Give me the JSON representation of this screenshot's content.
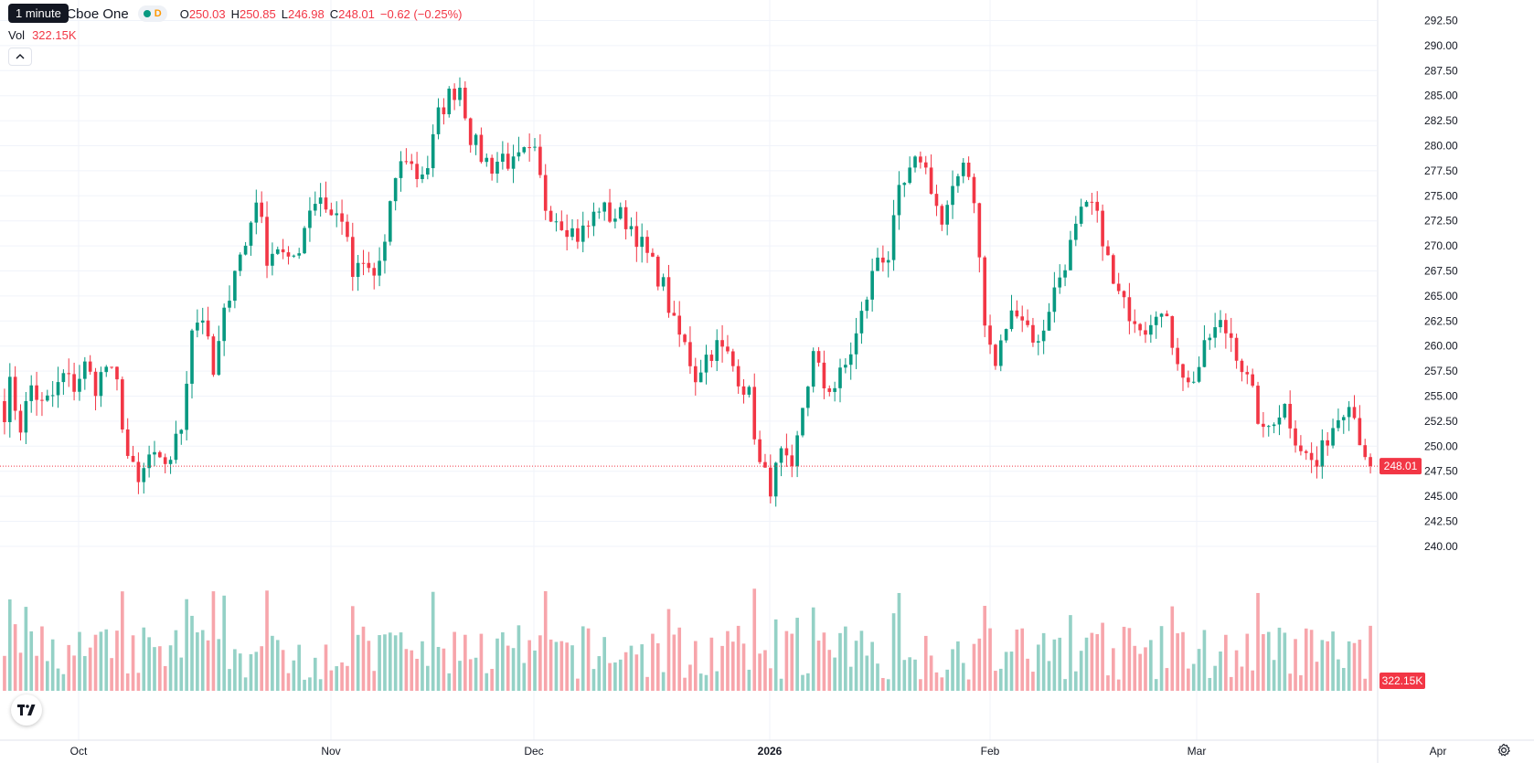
{
  "legend": {
    "title": "Inc · 4h · Cboe One",
    "market_letter": "D",
    "open_label": "O",
    "open": "250.03",
    "high_label": "H",
    "high": "250.85",
    "low_label": "L",
    "low": "246.98",
    "close_label": "C",
    "close": "248.01",
    "change": "−0.62 (−0.25%)",
    "vol_label": "Vol",
    "vol": "322.15K"
  },
  "tooltip": "1 minute",
  "logo_text": "TV",
  "colors": {
    "up": "#089981",
    "down": "#f23645",
    "up_volume": "#94d1c6",
    "down_volume": "#f7a5ab",
    "grid": "#f0f3fa"
  },
  "chart_data": {
    "type": "candlestick",
    "timeframe": "4h",
    "y_axis_ticks": [
      "292.50",
      "290.00",
      "287.50",
      "285.00",
      "282.50",
      "280.00",
      "277.50",
      "275.00",
      "272.50",
      "270.00",
      "267.50",
      "265.00",
      "262.50",
      "260.00",
      "257.50",
      "255.00",
      "252.50",
      "250.00",
      "247.50",
      "245.00",
      "242.50",
      "240.00"
    ],
    "ylim": [
      240.0,
      293.5
    ],
    "x_axis_labels": [
      "Oct",
      "Nov",
      "Dec",
      "2026",
      "Feb",
      "Mar",
      "Apr"
    ],
    "last_price": "248.01",
    "last_volume": "322.15K",
    "price_path": [
      {
        "d": "Sep 25",
        "v": 251
      },
      {
        "d": "Sep 26",
        "v": 256
      },
      {
        "d": "Sep 29",
        "v": 252
      },
      {
        "d": "Sep 30",
        "v": 256
      },
      {
        "d": "Oct 2",
        "v": 254
      },
      {
        "d": "Oct 3",
        "v": 255
      },
      {
        "d": "Oct 6",
        "v": 257
      },
      {
        "d": "Oct 7",
        "v": 256
      },
      {
        "d": "Oct 8",
        "v": 258
      },
      {
        "d": "Oct 9",
        "v": 256
      },
      {
        "d": "Oct 10",
        "v": 258
      },
      {
        "d": "Oct 13",
        "v": 256
      },
      {
        "d": "Oct 14",
        "v": 249
      },
      {
        "d": "Oct 15",
        "v": 246
      },
      {
        "d": "Oct 16",
        "v": 249
      },
      {
        "d": "Oct 17",
        "v": 248
      },
      {
        "d": "Oct 20",
        "v": 249
      },
      {
        "d": "Oct 21",
        "v": 252
      },
      {
        "d": "Oct 22",
        "v": 262
      },
      {
        "d": "Oct 23",
        "v": 263
      },
      {
        "d": "Oct 24",
        "v": 257
      },
      {
        "d": "Oct 27",
        "v": 263
      },
      {
        "d": "Oct 28",
        "v": 268
      },
      {
        "d": "Oct 29",
        "v": 270
      },
      {
        "d": "Oct 30",
        "v": 275
      },
      {
        "d": "Oct 31",
        "v": 269
      },
      {
        "d": "Nov 3",
        "v": 270
      },
      {
        "d": "Nov 4",
        "v": 268
      },
      {
        "d": "Nov 5",
        "v": 270
      },
      {
        "d": "Nov 6",
        "v": 274
      },
      {
        "d": "Nov 7",
        "v": 275
      },
      {
        "d": "Nov 10",
        "v": 273
      },
      {
        "d": "Nov 11",
        "v": 273
      },
      {
        "d": "Nov 12",
        "v": 267
      },
      {
        "d": "Nov 13",
        "v": 268
      },
      {
        "d": "Nov 14",
        "v": 267
      },
      {
        "d": "Nov 17",
        "v": 270
      },
      {
        "d": "Nov 18",
        "v": 277
      },
      {
        "d": "Nov 19",
        "v": 279
      },
      {
        "d": "Nov 20",
        "v": 277
      },
      {
        "d": "Nov 21",
        "v": 278
      },
      {
        "d": "Nov 24",
        "v": 283
      },
      {
        "d": "Nov 25",
        "v": 285
      },
      {
        "d": "Nov 26",
        "v": 286
      },
      {
        "d": "Nov 28",
        "v": 281
      },
      {
        "d": "Dec 1",
        "v": 279
      },
      {
        "d": "Dec 2",
        "v": 278
      },
      {
        "d": "Dec 3",
        "v": 279
      },
      {
        "d": "Dec 4",
        "v": 278
      },
      {
        "d": "Dec 5",
        "v": 279
      },
      {
        "d": "Dec 8",
        "v": 279
      },
      {
        "d": "Dec 9",
        "v": 274
      },
      {
        "d": "Dec 10",
        "v": 273
      },
      {
        "d": "Dec 11",
        "v": 272
      },
      {
        "d": "Dec 12",
        "v": 271
      },
      {
        "d": "Dec 15",
        "v": 272
      },
      {
        "d": "Dec 16",
        "v": 274
      },
      {
        "d": "Dec 17",
        "v": 273
      },
      {
        "d": "Dec 18",
        "v": 273
      },
      {
        "d": "Dec 19",
        "v": 272
      },
      {
        "d": "Dec 22",
        "v": 270
      },
      {
        "d": "Dec 23",
        "v": 268
      },
      {
        "d": "Dec 24",
        "v": 266
      },
      {
        "d": "Dec 26",
        "v": 262
      },
      {
        "d": "Dec 29",
        "v": 260
      },
      {
        "d": "Dec 30",
        "v": 257
      },
      {
        "d": "Dec 31",
        "v": 259
      },
      {
        "d": "Jan 2",
        "v": 260
      },
      {
        "d": "Jan 5",
        "v": 259
      },
      {
        "d": "Jan 6",
        "v": 257
      },
      {
        "d": "Jan 7",
        "v": 255
      },
      {
        "d": "Jan 8",
        "v": 248
      },
      {
        "d": "Jan 9",
        "v": 246
      },
      {
        "d": "Jan 12",
        "v": 249
      },
      {
        "d": "Jan 13",
        "v": 247
      },
      {
        "d": "Jan 14",
        "v": 254
      },
      {
        "d": "Jan 15",
        "v": 259
      },
      {
        "d": "Jan 16",
        "v": 256
      },
      {
        "d": "Jan 20",
        "v": 256
      },
      {
        "d": "Jan 21",
        "v": 258
      },
      {
        "d": "Jan 22",
        "v": 261
      },
      {
        "d": "Jan 23",
        "v": 265
      },
      {
        "d": "Jan 26",
        "v": 269
      },
      {
        "d": "Jan 27",
        "v": 269
      },
      {
        "d": "Jan 28",
        "v": 275
      },
      {
        "d": "Jan 29",
        "v": 277
      },
      {
        "d": "Jan 30",
        "v": 279
      },
      {
        "d": "Feb 2",
        "v": 276
      },
      {
        "d": "Feb 3",
        "v": 272
      },
      {
        "d": "Feb 4",
        "v": 275
      },
      {
        "d": "Feb 5",
        "v": 279
      },
      {
        "d": "Feb 6",
        "v": 275
      },
      {
        "d": "Feb 9",
        "v": 262
      },
      {
        "d": "Feb 10",
        "v": 258
      },
      {
        "d": "Feb 11",
        "v": 262
      },
      {
        "d": "Feb 12",
        "v": 264
      },
      {
        "d": "Feb 13",
        "v": 262
      },
      {
        "d": "Feb 17",
        "v": 260
      },
      {
        "d": "Feb 18",
        "v": 264
      },
      {
        "d": "Feb 19",
        "v": 267
      },
      {
        "d": "Feb 20",
        "v": 270
      },
      {
        "d": "Feb 23",
        "v": 273
      },
      {
        "d": "Feb 24",
        "v": 274
      },
      {
        "d": "Feb 25",
        "v": 271
      },
      {
        "d": "Feb 26",
        "v": 266
      },
      {
        "d": "Feb 27",
        "v": 264
      },
      {
        "d": "Mar 2",
        "v": 263
      },
      {
        "d": "Mar 3",
        "v": 262
      },
      {
        "d": "Mar 4",
        "v": 264
      },
      {
        "d": "Mar 5",
        "v": 262
      },
      {
        "d": "Mar 6",
        "v": 259
      },
      {
        "d": "Mar 9",
        "v": 256
      },
      {
        "d": "Mar 10",
        "v": 258
      },
      {
        "d": "Mar 11",
        "v": 261
      },
      {
        "d": "Mar 12",
        "v": 262
      },
      {
        "d": "Mar 13",
        "v": 261
      },
      {
        "d": "Mar 16",
        "v": 258
      },
      {
        "d": "Mar 17",
        "v": 255
      },
      {
        "d": "Mar 18",
        "v": 251
      },
      {
        "d": "Mar 19",
        "v": 253
      },
      {
        "d": "Mar 20",
        "v": 254
      },
      {
        "d": "Mar 23",
        "v": 251
      },
      {
        "d": "Mar 24",
        "v": 249
      },
      {
        "d": "Mar 25",
        "v": 248
      },
      {
        "d": "Mar 26",
        "v": 251
      },
      {
        "d": "Mar 27",
        "v": 253
      },
      {
        "d": "Mar 30",
        "v": 255
      },
      {
        "d": "Mar 31",
        "v": 251
      },
      {
        "d": "Apr 1",
        "v": 248
      }
    ],
    "grid": true,
    "legend_position": "top-left"
  }
}
